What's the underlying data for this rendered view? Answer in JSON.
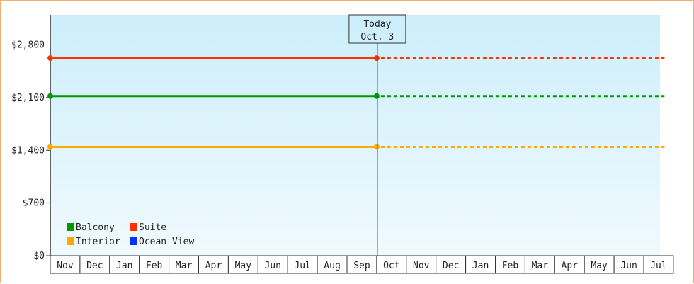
{
  "chart_data": {
    "type": "line",
    "title": "",
    "xlabel": "",
    "ylabel": "",
    "ylim": [
      0,
      3200
    ],
    "y_ticks": [
      {
        "value": 0,
        "label": "$0"
      },
      {
        "value": 700,
        "label": "$700"
      },
      {
        "value": 1400,
        "label": "$1,400"
      },
      {
        "value": 2100,
        "label": "$2,100"
      },
      {
        "value": 2800,
        "label": "$2,800"
      }
    ],
    "categories": [
      "Nov",
      "Dec",
      "Jan",
      "Feb",
      "Mar",
      "Apr",
      "May",
      "Jun",
      "Jul",
      "Aug",
      "Sep",
      "Oct",
      "Nov",
      "Dec",
      "Jan",
      "Feb",
      "Mar",
      "Apr",
      "May",
      "Jun",
      "Jul"
    ],
    "today_marker": {
      "line1": "Today",
      "line2": "Oct. 3",
      "position_index": 11
    },
    "series": [
      {
        "name": "Suite",
        "color": "#ff3300",
        "start": 0,
        "today": 11,
        "end": 20.7,
        "value": 2625,
        "style_past": "solid",
        "style_future": "dashed"
      },
      {
        "name": "Balcony",
        "color": "#009900",
        "start": 0,
        "today": 11,
        "end": 20.7,
        "value": 2120,
        "style_past": "solid",
        "style_future": "dashed"
      },
      {
        "name": "Interior",
        "color": "#ffaa00",
        "start": 0,
        "today": 11,
        "end": 20.7,
        "value": 1445,
        "style_past": "solid",
        "style_future": "dashed"
      },
      {
        "name": "Ocean View",
        "color": "#0033ff",
        "start": null,
        "today": null,
        "end": null,
        "value": null,
        "style_past": "solid",
        "style_future": "dashed"
      }
    ],
    "legend": [
      {
        "name": "Balcony",
        "color": "#009900"
      },
      {
        "name": "Suite",
        "color": "#ff3300"
      },
      {
        "name": "Interior",
        "color": "#ffaa00"
      },
      {
        "name": "Ocean View",
        "color": "#0033ff"
      }
    ],
    "legend_placement": "bottom-left",
    "grid": false,
    "background_gradient": [
      "#cceefa",
      "#f0fafe"
    ]
  }
}
